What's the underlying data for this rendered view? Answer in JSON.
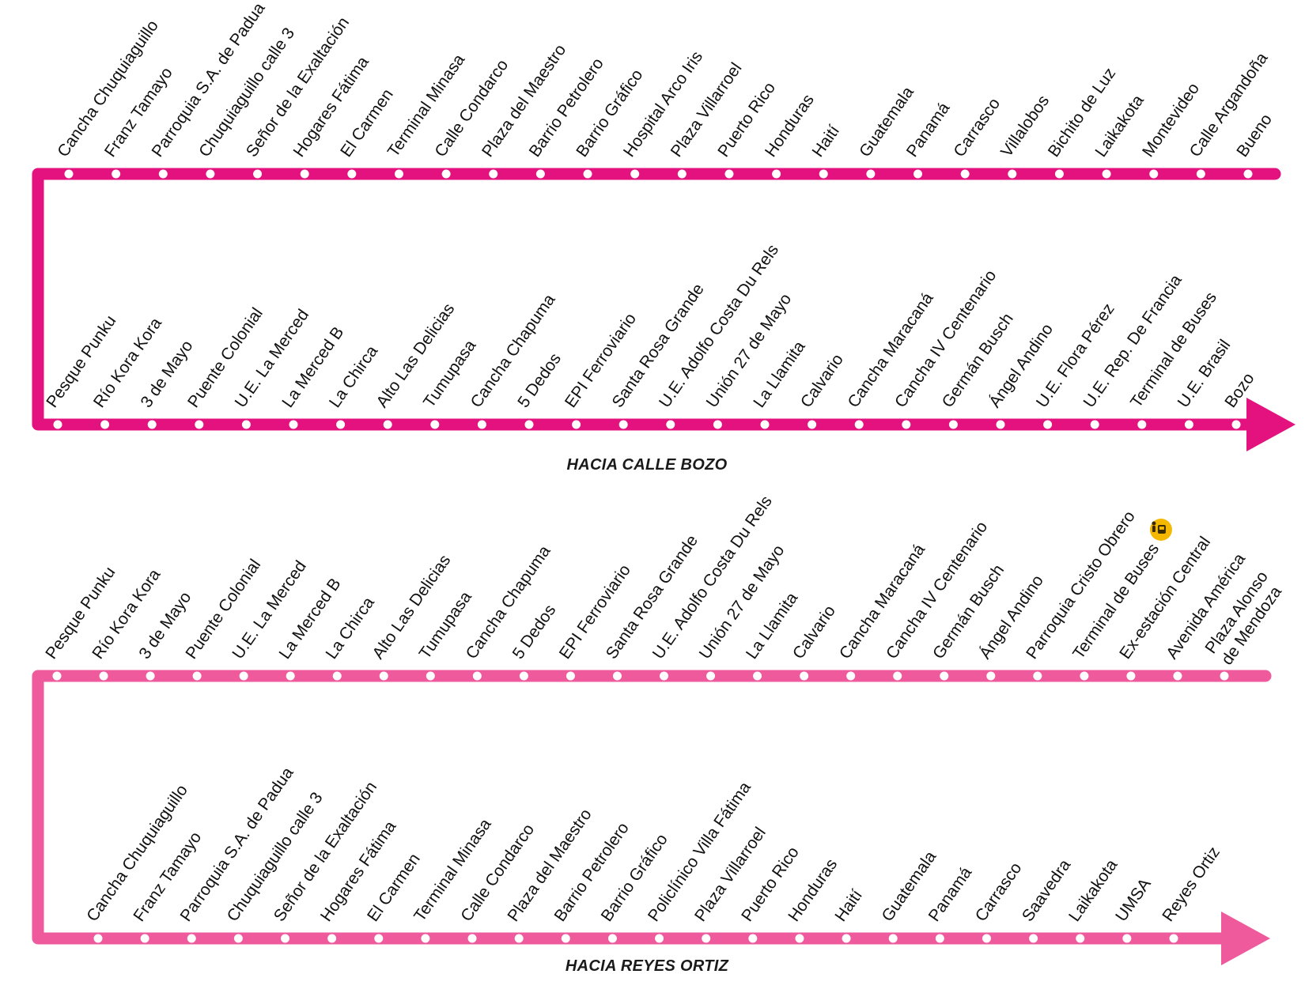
{
  "colors": {
    "route_top": "#e3127f",
    "route_bottom": "#ee5a9c",
    "stop_fill": "#ffffff",
    "label": "#111111",
    "badge_fill": "#f5b800",
    "badge_icon": "#3a2a00"
  },
  "routes": [
    {
      "id": "hacia-calle-bozo",
      "direction_label": "HACIA CALLE BOZO",
      "color_key": "route_top",
      "row1": [
        "Cancha Chuquiaguillo",
        "Franz Tamayo",
        "Parroquia S.A. de Padua",
        "Chuquiaguillo calle 3",
        "Señor de la Exaltación",
        "Hogares Fátima",
        "El Carmen",
        "Terminal Minasa",
        "Calle Condarco",
        "Plaza del Maestro",
        "Barrio Petrolero",
        "Barrio Gráfico",
        "Hospital Arco Iris",
        "Plaza Villarroel",
        "Puerto Rico",
        "Honduras",
        "Haití",
        "Guatemala",
        "Panamá",
        "Carrasco",
        "Villalobos",
        "Bichito de Luz",
        "Laikakota",
        "Montevideo",
        "Calle Argandoña",
        "Bueno"
      ],
      "row2": [
        "Pesque Punku",
        "Río Kora Kora",
        "3 de Mayo",
        "Puente Colonial",
        "U.E. La Merced",
        "La Merced B",
        "La Chirca",
        "Alto Las Delicias",
        "Tumupasa",
        "Cancha Chapuma",
        "5 Dedos",
        "EPI Ferroviario",
        "Santa Rosa Grande",
        "U.E. Adolfo Costa Du Rels",
        "Unión 27 de Mayo",
        "La Llamita",
        "Calvario",
        "Cancha Maracaná",
        "Cancha IV Centenario",
        "Germán Busch",
        "Ángel Andino",
        "U.E. Flora Pérez",
        "U.E. Rep. De Francia",
        "Terminal de Buses",
        "U.E. Brasil",
        "Bozo"
      ]
    },
    {
      "id": "hacia-reyes-ortiz",
      "direction_label": "HACIA REYES ORTIZ",
      "color_key": "route_bottom",
      "row1": [
        "Pesque Punku",
        "Río Kora Kora",
        "3 de Mayo",
        "Puente Colonial",
        "U.E. La Merced",
        "La Merced B",
        "La Chirca",
        "Alto Las Delicias",
        "Tumupasa",
        "Cancha Chapuma",
        "5 Dedos",
        "EPI Ferroviario",
        "Santa Rosa Grande",
        "U.E. Adolfo Costa Du Rels",
        "Unión 27 de Mayo",
        "La Llamita",
        "Calvario",
        "Cancha Maracaná",
        "Cancha IV Centenario",
        "Germán Busch",
        "Ángel Andino",
        "Parroquia Cristo Obrero",
        "Terminal de Buses",
        "Ex-estación Central",
        "Avenida América",
        "Plaza Alonso de Mendoza"
      ],
      "row2": [
        "Cancha Chuquiaguillo",
        "Franz Tamayo",
        "Parroquia S.A. de Padua",
        "Chuquiaguillo calle 3",
        "Señor de la Exaltación",
        "Hogares Fátima",
        "El Carmen",
        "Terminal Minasa",
        "Calle Condarco",
        "Plaza del Maestro",
        "Barrio Petrolero",
        "Barrio Gráfico",
        "Policlínico Villa Fátima",
        "Plaza Villarroel",
        "Puerto Rico",
        "Honduras",
        "Haití",
        "Guatemala",
        "Panamá",
        "Carrasco",
        "Saavedra",
        "Laikakota",
        "UMSA",
        "Reyes Ortiz"
      ],
      "transfer_badge": {
        "stop": "Ex-estación Central",
        "icon": "bus-transfer-icon"
      }
    }
  ]
}
